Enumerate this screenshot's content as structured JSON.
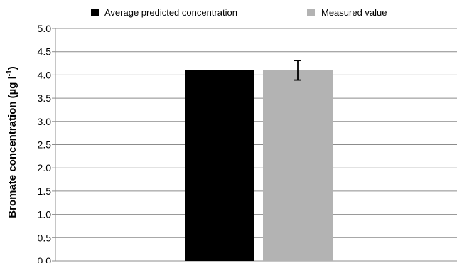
{
  "chart_data": {
    "type": "bar",
    "categories": [
      ""
    ],
    "series": [
      {
        "name": "Average predicted concentration",
        "values": [
          4.1
        ],
        "color": "#000000"
      },
      {
        "name": "Measured value",
        "values": [
          4.1
        ],
        "error": [
          0.21
        ],
        "color": "#b3b3b3"
      }
    ],
    "ylabel_main": "Bromate concentration (µg l",
    "ylabel_sup": "-1",
    "ylabel_close": ")",
    "ylim": [
      0,
      5
    ],
    "yticks": [
      "0.0",
      "0.5",
      "1.0",
      "1.5",
      "2.0",
      "2.5",
      "3.0",
      "3.5",
      "4.0",
      "4.5",
      "5.0"
    ],
    "grid": true,
    "legend_position": "top"
  }
}
